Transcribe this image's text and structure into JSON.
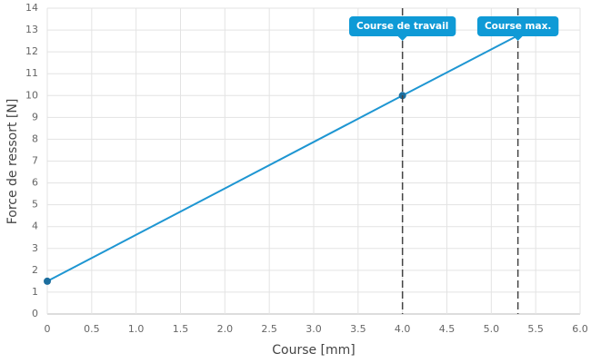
{
  "chart_data": {
    "type": "line",
    "x_label": "Course [mm]",
    "y_label": "Force de ressort [N]",
    "x": [
      0,
      4,
      5.3
    ],
    "series": [
      {
        "color": "#1e96d2",
        "marker_color": "#1c6e9e",
        "values": [
          1.5,
          10,
          12.75
        ]
      }
    ],
    "annotations": [
      {
        "x": 4,
        "label": "Course de travail"
      },
      {
        "x": 5.3,
        "label": "Course max."
      }
    ],
    "annotation_color": "#0f9ad6",
    "xlim": [
      0,
      6
    ],
    "ylim": [
      0,
      14
    ],
    "xticks": [
      0,
      0.5,
      {
        "value": 1,
        "label": "1.0"
      },
      1.5,
      {
        "value": 2,
        "label": "2.0"
      },
      2.5,
      {
        "value": 3,
        "label": "3.0"
      },
      3.5,
      {
        "value": 4,
        "label": "4.0"
      },
      4.5,
      {
        "value": 5,
        "label": "5.0"
      },
      5.5,
      {
        "value": 6,
        "label": "6.0"
      }
    ],
    "yticks": [
      0,
      1,
      2,
      3,
      4,
      5,
      6,
      7,
      8,
      9,
      10,
      11,
      12,
      13,
      14
    ],
    "grid": true
  }
}
